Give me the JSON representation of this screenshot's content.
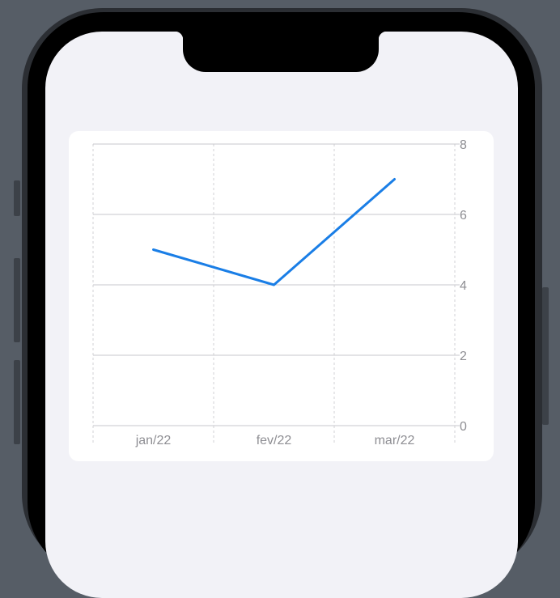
{
  "chart_data": {
    "type": "line",
    "categories": [
      "jan/22",
      "fev/22",
      "mar/22"
    ],
    "series": [
      {
        "values": [
          5,
          4,
          7
        ],
        "color": "#1a7ee6"
      }
    ],
    "ylim": [
      0,
      8
    ],
    "yticks": [
      "0",
      "2",
      "4",
      "6",
      "8"
    ],
    "y_axis_position": "right",
    "grid": true,
    "title": "",
    "xlabel": "",
    "ylabel": ""
  }
}
